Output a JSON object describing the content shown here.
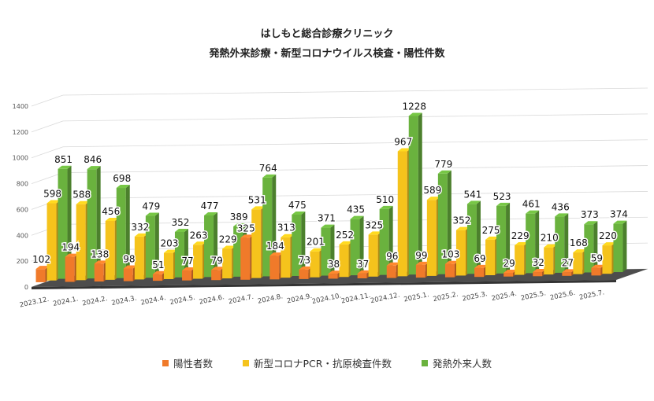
{
  "page": {
    "title_line1": "はしもと総合診療クリニック",
    "title_line2": "発熱外来診療・新型コロナウイルス検査・陽性件数"
  },
  "chart_data": {
    "type": "bar",
    "style": "3d-grouped",
    "title": "発熱外来診療・新型コロナウイルス検査・陽性件数",
    "categories": [
      "2023.12.",
      "2024.1.",
      "2024.2.",
      "2024.3.",
      "2024.4.",
      "2024.5.",
      "2024.6.",
      "2024.7.",
      "2024.8.",
      "2024.9.",
      "2024.10.",
      "2024.11.",
      "2024.12.",
      "2025.1.",
      "2025.2.",
      "2025.3.",
      "2025.4.",
      "2025.5.",
      "2025.6.",
      "2025.7."
    ],
    "series": [
      {
        "name": "陽性者数",
        "color": "#f07a2a",
        "values": [
          102,
          194,
          138,
          98,
          51,
          77,
          79,
          325,
          184,
          73,
          38,
          37,
          96,
          99,
          103,
          69,
          29,
          32,
          27,
          59
        ]
      },
      {
        "name": "新型コロナPCR・抗原検査件数",
        "color": "#f5c31c",
        "values": [
          598,
          588,
          456,
          332,
          203,
          263,
          229,
          531,
          313,
          201,
          252,
          325,
          967,
          589,
          352,
          275,
          229,
          210,
          168,
          220
        ]
      },
      {
        "name": "発熱外来人数",
        "color": "#6ab23e",
        "values": [
          851,
          846,
          698,
          479,
          352,
          477,
          389,
          764,
          475,
          371,
          435,
          510,
          1228,
          779,
          541,
          523,
          461,
          436,
          373,
          374
        ]
      }
    ],
    "y_ticks": [
      "0",
      "200",
      "400",
      "600",
      "800",
      "1000",
      "1200",
      "1400"
    ],
    "ylim": [
      0,
      1400
    ],
    "grid": true,
    "legend_position": "bottom"
  }
}
